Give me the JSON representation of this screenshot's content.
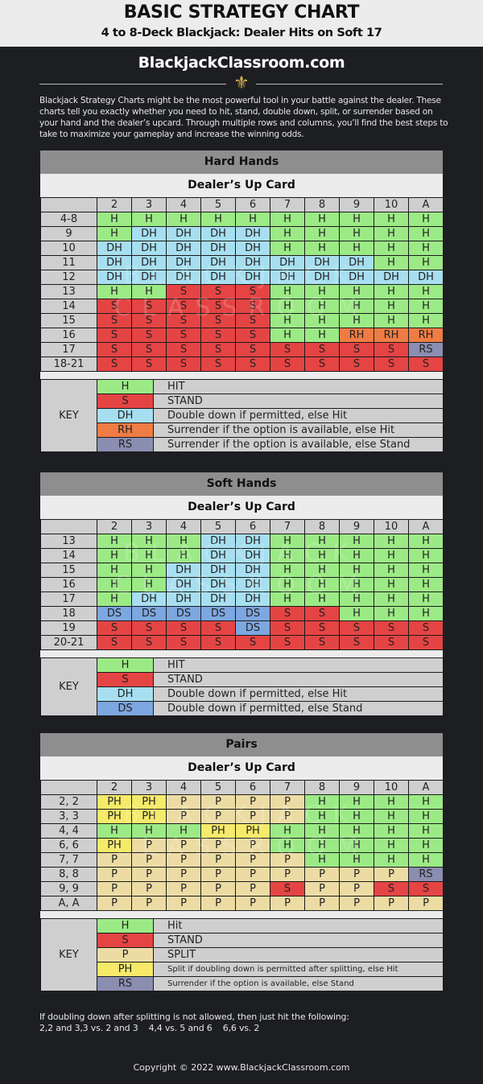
{
  "header": {
    "title": "BASIC STRATEGY CHART",
    "subtitle": "4 to 8-Deck Blackjack: Dealer Hits on Soft 17",
    "site": "BlackjackClassroom.com",
    "ornament": "⚜",
    "intro": "Blackjack Strategy Charts might be the most powerful tool in your battle against the dealer. These charts tell you exactly whether you need to hit, stand, double down, split, or surrender based on your hand and the dealer’s upcard. Through multiple rows and columns, you’ll find the best steps to take to maximize your gameplay and increase the winning odds."
  },
  "colors": {
    "H": "#9cea86",
    "S": "#e54444",
    "DH": "#a7dff0",
    "DS": "#7da7e0",
    "RH": "#ef7c44",
    "RS": "#8a8eb1",
    "P": "#ecdca4",
    "PH": "#f5ea69"
  },
  "dealer_label": "Dealer’s Up Card",
  "dealer_cards": [
    "2",
    "3",
    "4",
    "5",
    "6",
    "7",
    "8",
    "9",
    "10",
    "A"
  ],
  "watermark": [
    "BLACKJACK",
    "CLASSROOM"
  ],
  "hard": {
    "title": "Hard Hands",
    "rows": [
      {
        "hand": "4-8",
        "actions": [
          "H",
          "H",
          "H",
          "H",
          "H",
          "H",
          "H",
          "H",
          "H",
          "H"
        ]
      },
      {
        "hand": "9",
        "actions": [
          "H",
          "DH",
          "DH",
          "DH",
          "DH",
          "H",
          "H",
          "H",
          "H",
          "H"
        ]
      },
      {
        "hand": "10",
        "actions": [
          "DH",
          "DH",
          "DH",
          "DH",
          "DH",
          "H",
          "H",
          "H",
          "H",
          "H"
        ]
      },
      {
        "hand": "11",
        "actions": [
          "DH",
          "DH",
          "DH",
          "DH",
          "DH",
          "DH",
          "DH",
          "DH",
          "H",
          "H"
        ]
      },
      {
        "hand": "12",
        "actions": [
          "DH",
          "DH",
          "DH",
          "DH",
          "DH",
          "DH",
          "DH",
          "DH",
          "DH",
          "DH"
        ]
      },
      {
        "hand": "13",
        "actions": [
          "H",
          "H",
          "S",
          "S",
          "S",
          "H",
          "H",
          "H",
          "H",
          "H"
        ]
      },
      {
        "hand": "14",
        "actions": [
          "S",
          "S",
          "S",
          "S",
          "S",
          "H",
          "H",
          "H",
          "H",
          "H"
        ]
      },
      {
        "hand": "15",
        "actions": [
          "S",
          "S",
          "S",
          "S",
          "S",
          "H",
          "H",
          "H",
          "H",
          "H"
        ]
      },
      {
        "hand": "16",
        "actions": [
          "S",
          "S",
          "S",
          "S",
          "S",
          "H",
          "H",
          "RH",
          "RH",
          "RH"
        ]
      },
      {
        "hand": "17",
        "actions": [
          "S",
          "S",
          "S",
          "S",
          "S",
          "S",
          "S",
          "S",
          "S",
          "RS"
        ]
      },
      {
        "hand": "18-21",
        "actions": [
          "S",
          "S",
          "S",
          "S",
          "S",
          "S",
          "S",
          "S",
          "S",
          "S"
        ]
      }
    ],
    "key_label": "KEY",
    "key": [
      {
        "code": "H",
        "desc": "HIT"
      },
      {
        "code": "S",
        "desc": "STAND"
      },
      {
        "code": "DH",
        "desc": "Double down if permitted, else Hit"
      },
      {
        "code": "RH",
        "desc": "Surrender if the option is available, else Hit"
      },
      {
        "code": "RS",
        "desc": "Surrender if the option is available, else Stand"
      }
    ]
  },
  "soft": {
    "title": "Soft Hands",
    "rows": [
      {
        "hand": "13",
        "actions": [
          "H",
          "H",
          "H",
          "DH",
          "DH",
          "H",
          "H",
          "H",
          "H",
          "H"
        ]
      },
      {
        "hand": "14",
        "actions": [
          "H",
          "H",
          "H",
          "DH",
          "DH",
          "H",
          "H",
          "H",
          "H",
          "H"
        ]
      },
      {
        "hand": "15",
        "actions": [
          "H",
          "H",
          "DH",
          "DH",
          "DH",
          "H",
          "H",
          "H",
          "H",
          "H"
        ]
      },
      {
        "hand": "16",
        "actions": [
          "H",
          "H",
          "DH",
          "DH",
          "DH",
          "H",
          "H",
          "H",
          "H",
          "H"
        ]
      },
      {
        "hand": "17",
        "actions": [
          "H",
          "DH",
          "DH",
          "DH",
          "DH",
          "H",
          "H",
          "H",
          "H",
          "H"
        ]
      },
      {
        "hand": "18",
        "actions": [
          "DS",
          "DS",
          "DS",
          "DS",
          "DS",
          "S",
          "S",
          "H",
          "H",
          "H"
        ]
      },
      {
        "hand": "19",
        "actions": [
          "S",
          "S",
          "S",
          "S",
          "DS",
          "S",
          "S",
          "S",
          "S",
          "S"
        ]
      },
      {
        "hand": "20-21",
        "actions": [
          "S",
          "S",
          "S",
          "S",
          "S",
          "S",
          "S",
          "S",
          "S",
          "S"
        ]
      }
    ],
    "key_label": "KEY",
    "key": [
      {
        "code": "H",
        "desc": "HIT"
      },
      {
        "code": "S",
        "desc": "STAND"
      },
      {
        "code": "DH",
        "desc": "Double down if permitted, else Hit"
      },
      {
        "code": "DS",
        "desc": "Double down if permitted, else Stand"
      }
    ]
  },
  "pairs": {
    "title": "Pairs",
    "rows": [
      {
        "hand": "2, 2",
        "actions": [
          "PH",
          "PH",
          "P",
          "P",
          "P",
          "P",
          "H",
          "H",
          "H",
          "H"
        ]
      },
      {
        "hand": "3, 3",
        "actions": [
          "PH",
          "PH",
          "P",
          "P",
          "P",
          "P",
          "H",
          "H",
          "H",
          "H"
        ]
      },
      {
        "hand": "4, 4",
        "actions": [
          "H",
          "H",
          "H",
          "PH",
          "PH",
          "H",
          "H",
          "H",
          "H",
          "H"
        ]
      },
      {
        "hand": "6, 6",
        "actions": [
          "PH",
          "P",
          "P",
          "P",
          "P",
          "H",
          "H",
          "H",
          "H",
          "H"
        ]
      },
      {
        "hand": "7, 7",
        "actions": [
          "P",
          "P",
          "P",
          "P",
          "P",
          "P",
          "H",
          "H",
          "H",
          "H"
        ]
      },
      {
        "hand": "8, 8",
        "actions": [
          "P",
          "P",
          "P",
          "P",
          "P",
          "P",
          "P",
          "P",
          "P",
          "RS"
        ]
      },
      {
        "hand": "9, 9",
        "actions": [
          "P",
          "P",
          "P",
          "P",
          "P",
          "S",
          "P",
          "P",
          "S",
          "S"
        ]
      },
      {
        "hand": "A, A",
        "actions": [
          "P",
          "P",
          "P",
          "P",
          "P",
          "P",
          "P",
          "P",
          "P",
          "P"
        ]
      }
    ],
    "key_label": "KEY",
    "key": [
      {
        "code": "H",
        "desc": "Hit"
      },
      {
        "code": "S",
        "desc": "STAND"
      },
      {
        "code": "P",
        "desc": "SPLIT"
      },
      {
        "code": "PH",
        "desc": "Split if doubling down is permitted after splitting, else Hit",
        "small": true
      },
      {
        "code": "RS",
        "desc": "Surrender if the option is available, else Stand",
        "small": true
      }
    ]
  },
  "footer": {
    "note_line1": "If doubling down after splitting is not allowed, then just hit the following:",
    "note_line2": "2,2 and 3,3 vs. 2 and 3    4,4 vs. 5 and 6    6,6 vs. 2",
    "copyright": "Copyright © 2022 www.BlackjackClassroom.com"
  }
}
